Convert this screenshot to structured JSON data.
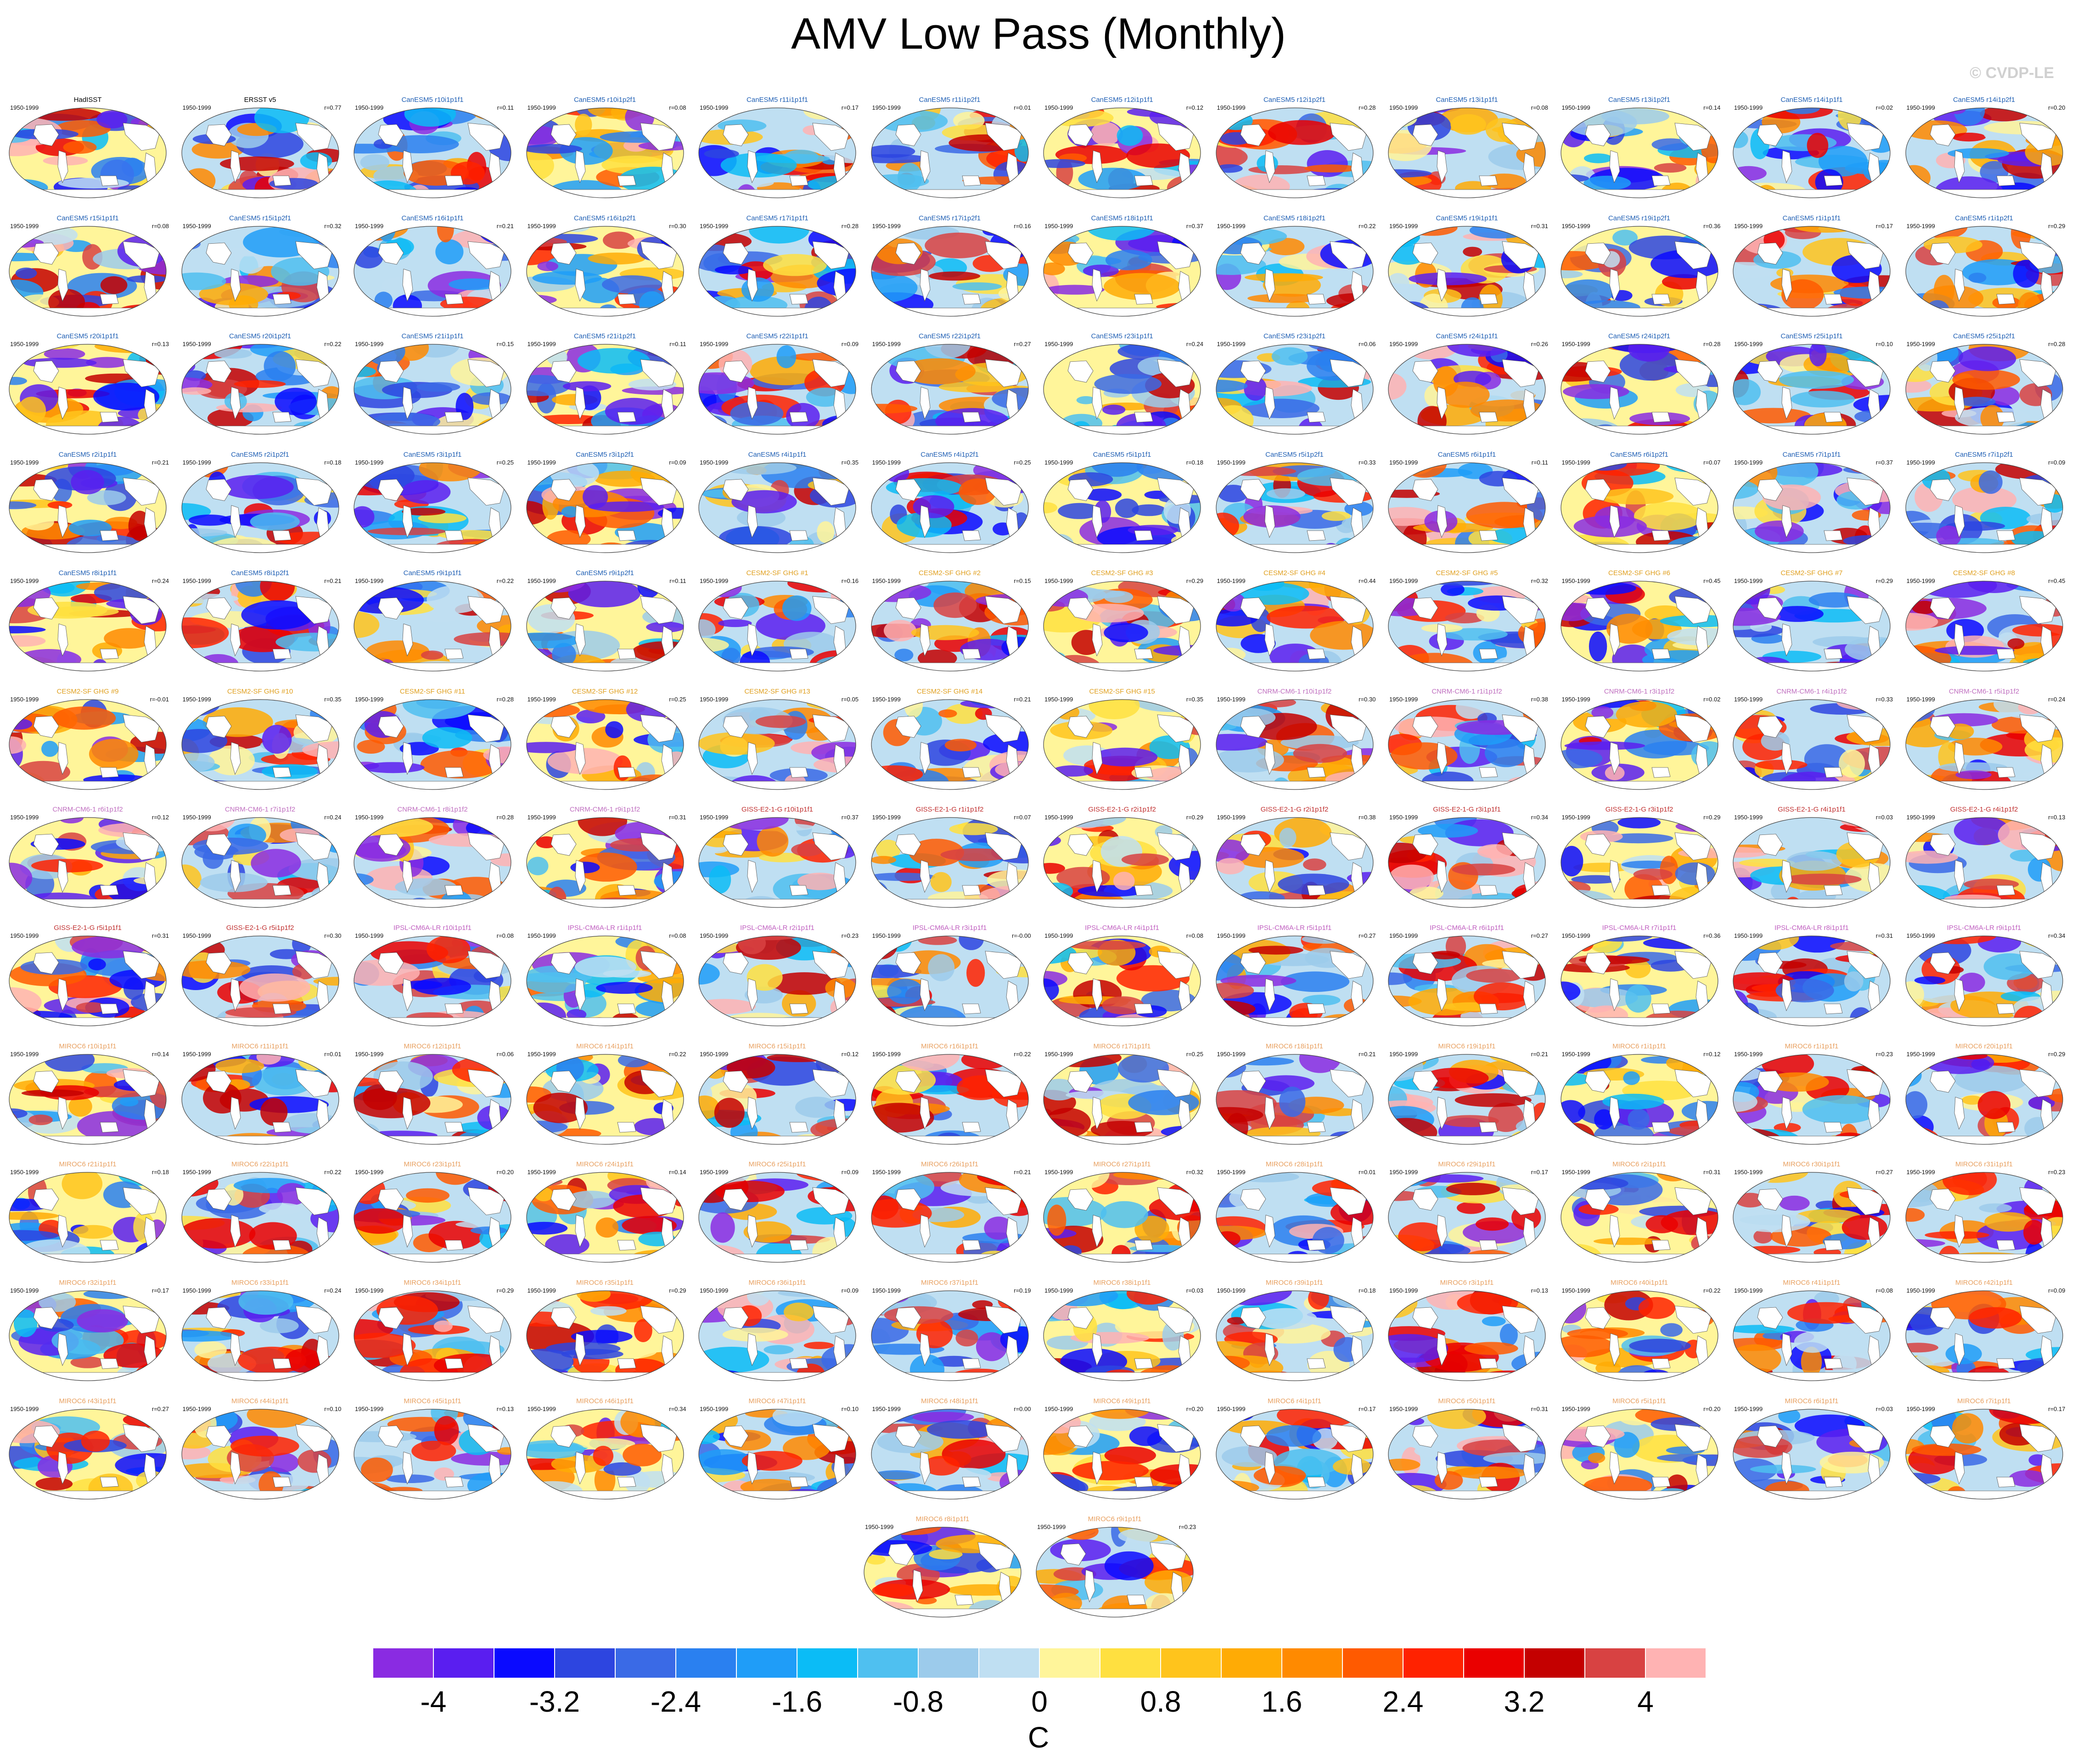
{
  "title": "AMV Low Pass (Monthly)",
  "watermark": "© CVDP-LE",
  "period": "1950-1999",
  "colorbar": {
    "units": "C",
    "ticks": [
      "-4",
      "-3.2",
      "-2.4",
      "-1.6",
      "-0.8",
      "0",
      "0.8",
      "1.6",
      "2.4",
      "3.2",
      "4"
    ],
    "levels_min": -4.4,
    "levels_step": 0.4,
    "colors": [
      "#8a2be2",
      "#5a1ef0",
      "#0a0aff",
      "#2d45e0",
      "#3a6ae6",
      "#2a80f0",
      "#1f9df8",
      "#0bbcf6",
      "#4fc0f0",
      "#9ccbeb",
      "#bfdff2",
      "#fff59a",
      "#ffe040",
      "#ffc41c",
      "#ffab05",
      "#ff8a00",
      "#ff5a00",
      "#ff2200",
      "#ea0000",
      "#c40000",
      "#d84242",
      "#ffb3b3"
    ]
  },
  "panels": [
    {
      "name": "HadISST",
      "r": "",
      "color": "#000000"
    },
    {
      "name": "ERSST v5",
      "r": "r=0.77",
      "color": "#000000"
    },
    {
      "name": "CanESM5 r10i1p1f1",
      "r": "r=0.11",
      "color": "#1f5fb4"
    },
    {
      "name": "CanESM5 r10i1p2f1",
      "r": "r=0.08",
      "color": "#1f5fb4"
    },
    {
      "name": "CanESM5 r11i1p1f1",
      "r": "r=0.17",
      "color": "#1f5fb4"
    },
    {
      "name": "CanESM5 r11i1p2f1",
      "r": "r=0.01",
      "color": "#1f5fb4"
    },
    {
      "name": "CanESM5 r12i1p1f1",
      "r": "r=0.12",
      "color": "#1f5fb4"
    },
    {
      "name": "CanESM5 r12i1p2f1",
      "r": "r=0.28",
      "color": "#1f5fb4"
    },
    {
      "name": "CanESM5 r13i1p1f1",
      "r": "r=0.08",
      "color": "#1f5fb4"
    },
    {
      "name": "CanESM5 r13i1p2f1",
      "r": "r=0.14",
      "color": "#1f5fb4"
    },
    {
      "name": "CanESM5 r14i1p1f1",
      "r": "r=0.02",
      "color": "#1f5fb4"
    },
    {
      "name": "CanESM5 r14i1p2f1",
      "r": "r=0.20",
      "color": "#1f5fb4"
    },
    {
      "name": "CanESM5 r15i1p1f1",
      "r": "r=0.08",
      "color": "#1f5fb4"
    },
    {
      "name": "CanESM5 r15i1p2f1",
      "r": "r=0.32",
      "color": "#1f5fb4"
    },
    {
      "name": "CanESM5 r16i1p1f1",
      "r": "r=0.21",
      "color": "#1f5fb4"
    },
    {
      "name": "CanESM5 r16i1p2f1",
      "r": "r=0.30",
      "color": "#1f5fb4"
    },
    {
      "name": "CanESM5 r17i1p1f1",
      "r": "r=0.28",
      "color": "#1f5fb4"
    },
    {
      "name": "CanESM5 r17i1p2f1",
      "r": "r=0.16",
      "color": "#1f5fb4"
    },
    {
      "name": "CanESM5 r18i1p1f1",
      "r": "r=0.37",
      "color": "#1f5fb4"
    },
    {
      "name": "CanESM5 r18i1p2f1",
      "r": "r=0.22",
      "color": "#1f5fb4"
    },
    {
      "name": "CanESM5 r19i1p1f1",
      "r": "r=0.31",
      "color": "#1f5fb4"
    },
    {
      "name": "CanESM5 r19i1p2f1",
      "r": "r=0.36",
      "color": "#1f5fb4"
    },
    {
      "name": "CanESM5 r1i1p1f1",
      "r": "r=0.17",
      "color": "#1f5fb4"
    },
    {
      "name": "CanESM5 r1i1p2f1",
      "r": "r=0.29",
      "color": "#1f5fb4"
    },
    {
      "name": "CanESM5 r20i1p1f1",
      "r": "r=0.13",
      "color": "#1f5fb4"
    },
    {
      "name": "CanESM5 r20i1p2f1",
      "r": "r=0.22",
      "color": "#1f5fb4"
    },
    {
      "name": "CanESM5 r21i1p1f1",
      "r": "r=0.15",
      "color": "#1f5fb4"
    },
    {
      "name": "CanESM5 r21i1p2f1",
      "r": "r=0.11",
      "color": "#1f5fb4"
    },
    {
      "name": "CanESM5 r22i1p1f1",
      "r": "r=0.09",
      "color": "#1f5fb4"
    },
    {
      "name": "CanESM5 r22i1p2f1",
      "r": "r=0.27",
      "color": "#1f5fb4"
    },
    {
      "name": "CanESM5 r23i1p1f1",
      "r": "r=0.24",
      "color": "#1f5fb4"
    },
    {
      "name": "CanESM5 r23i1p2f1",
      "r": "r=0.06",
      "color": "#1f5fb4"
    },
    {
      "name": "CanESM5 r24i1p1f1",
      "r": "r=0.26",
      "color": "#1f5fb4"
    },
    {
      "name": "CanESM5 r24i1p2f1",
      "r": "r=0.28",
      "color": "#1f5fb4"
    },
    {
      "name": "CanESM5 r25i1p1f1",
      "r": "r=0.10",
      "color": "#1f5fb4"
    },
    {
      "name": "CanESM5 r25i1p2f1",
      "r": "r=0.28",
      "color": "#1f5fb4"
    },
    {
      "name": "CanESM5 r2i1p1f1",
      "r": "r=0.21",
      "color": "#1f5fb4"
    },
    {
      "name": "CanESM5 r2i1p2f1",
      "r": "r=0.18",
      "color": "#1f5fb4"
    },
    {
      "name": "CanESM5 r3i1p1f1",
      "r": "r=0.25",
      "color": "#1f5fb4"
    },
    {
      "name": "CanESM5 r3i1p2f1",
      "r": "r=0.09",
      "color": "#1f5fb4"
    },
    {
      "name": "CanESM5 r4i1p1f1",
      "r": "r=0.35",
      "color": "#1f5fb4"
    },
    {
      "name": "CanESM5 r4i1p2f1",
      "r": "r=0.25",
      "color": "#1f5fb4"
    },
    {
      "name": "CanESM5 r5i1p1f1",
      "r": "r=0.18",
      "color": "#1f5fb4"
    },
    {
      "name": "CanESM5 r5i1p2f1",
      "r": "r=0.33",
      "color": "#1f5fb4"
    },
    {
      "name": "CanESM5 r6i1p1f1",
      "r": "r=0.11",
      "color": "#1f5fb4"
    },
    {
      "name": "CanESM5 r6i1p2f1",
      "r": "r=0.07",
      "color": "#1f5fb4"
    },
    {
      "name": "CanESM5 r7i1p1f1",
      "r": "r=0.37",
      "color": "#1f5fb4"
    },
    {
      "name": "CanESM5 r7i1p2f1",
      "r": "r=0.09",
      "color": "#1f5fb4"
    },
    {
      "name": "CanESM5 r8i1p1f1",
      "r": "r=0.24",
      "color": "#1f5fb4"
    },
    {
      "name": "CanESM5 r8i1p2f1",
      "r": "r=0.21",
      "color": "#1f5fb4"
    },
    {
      "name": "CanESM5 r9i1p1f1",
      "r": "r=0.22",
      "color": "#1f5fb4"
    },
    {
      "name": "CanESM5 r9i1p2f1",
      "r": "r=0.11",
      "color": "#1f5fb4"
    },
    {
      "name": "CESM2-SF GHG #1",
      "r": "r=0.16",
      "color": "#e0a020"
    },
    {
      "name": "CESM2-SF GHG #2",
      "r": "r=0.15",
      "color": "#e0a020"
    },
    {
      "name": "CESM2-SF GHG #3",
      "r": "r=0.29",
      "color": "#e0a020"
    },
    {
      "name": "CESM2-SF GHG #4",
      "r": "r=0.44",
      "color": "#e0a020"
    },
    {
      "name": "CESM2-SF GHG #5",
      "r": "r=0.32",
      "color": "#e0a020"
    },
    {
      "name": "CESM2-SF GHG #6",
      "r": "r=0.45",
      "color": "#e0a020"
    },
    {
      "name": "CESM2-SF GHG #7",
      "r": "r=0.29",
      "color": "#e0a020"
    },
    {
      "name": "CESM2-SF GHG #8",
      "r": "r=0.45",
      "color": "#e0a020"
    },
    {
      "name": "CESM2-SF GHG #9",
      "r": "r=-0.01",
      "color": "#e0a020"
    },
    {
      "name": "CESM2-SF GHG #10",
      "r": "r=0.35",
      "color": "#e0a020"
    },
    {
      "name": "CESM2-SF GHG #11",
      "r": "r=0.28",
      "color": "#e0a020"
    },
    {
      "name": "CESM2-SF GHG #12",
      "r": "r=0.25",
      "color": "#e0a020"
    },
    {
      "name": "CESM2-SF GHG #13",
      "r": "r=0.05",
      "color": "#e0a020"
    },
    {
      "name": "CESM2-SF GHG #14",
      "r": "r=0.21",
      "color": "#e0a020"
    },
    {
      "name": "CESM2-SF GHG #15",
      "r": "r=0.35",
      "color": "#e0a020"
    },
    {
      "name": "CNRM-CM6-1 r10i1p1f2",
      "r": "r=0.30",
      "color": "#c070c0"
    },
    {
      "name": "CNRM-CM6-1 r1i1p1f2",
      "r": "r=0.38",
      "color": "#c070c0"
    },
    {
      "name": "CNRM-CM6-1 r3i1p1f2",
      "r": "r=0.02",
      "color": "#c070c0"
    },
    {
      "name": "CNRM-CM6-1 r4i1p1f2",
      "r": "r=0.33",
      "color": "#c070c0"
    },
    {
      "name": "CNRM-CM6-1 r5i1p1f2",
      "r": "r=0.24",
      "color": "#c070c0"
    },
    {
      "name": "CNRM-CM6-1 r6i1p1f2",
      "r": "r=0.12",
      "color": "#c070c0"
    },
    {
      "name": "CNRM-CM6-1 r7i1p1f2",
      "r": "r=0.24",
      "color": "#c070c0"
    },
    {
      "name": "CNRM-CM6-1 r8i1p1f2",
      "r": "r=0.28",
      "color": "#c070c0"
    },
    {
      "name": "CNRM-CM6-1 r9i1p1f2",
      "r": "r=0.31",
      "color": "#c070c0"
    },
    {
      "name": "GISS-E2-1-G r10i1p1f1",
      "r": "r=0.37",
      "color": "#c03030"
    },
    {
      "name": "GISS-E2-1-G r1i1p1f2",
      "r": "r=0.07",
      "color": "#c03030"
    },
    {
      "name": "GISS-E2-1-G r2i1p1f2",
      "r": "r=0.29",
      "color": "#c03030"
    },
    {
      "name": "GISS-E2-1-G r2i1p1f2",
      "r": "r=0.38",
      "color": "#c03030"
    },
    {
      "name": "GISS-E2-1-G r3i1p1f1",
      "r": "r=0.34",
      "color": "#c03030"
    },
    {
      "name": "GISS-E2-1-G r3i1p1f2",
      "r": "r=0.29",
      "color": "#c03030"
    },
    {
      "name": "GISS-E2-1-G r4i1p1f1",
      "r": "r=0.03",
      "color": "#c03030"
    },
    {
      "name": "GISS-E2-1-G r4i1p1f2",
      "r": "r=0.13",
      "color": "#c03030"
    },
    {
      "name": "GISS-E2-1-G r5i1p1f1",
      "r": "r=0.31",
      "color": "#c03030"
    },
    {
      "name": "GISS-E2-1-G r5i1p1f2",
      "r": "r=0.30",
      "color": "#c03030"
    },
    {
      "name": "IPSL-CM6A-LR r10i1p1f1",
      "r": "r=0.08",
      "color": "#c060c0"
    },
    {
      "name": "IPSL-CM6A-LR r1i1p1f1",
      "r": "r=0.08",
      "color": "#c060c0"
    },
    {
      "name": "IPSL-CM6A-LR r2i1p1f1",
      "r": "r=0.23",
      "color": "#c060c0"
    },
    {
      "name": "IPSL-CM6A-LR r3i1p1f1",
      "r": "r=-0.00",
      "color": "#c060c0"
    },
    {
      "name": "IPSL-CM6A-LR r4i1p1f1",
      "r": "r=0.08",
      "color": "#c060c0"
    },
    {
      "name": "IPSL-CM6A-LR r5i1p1f1",
      "r": "r=0.27",
      "color": "#c060c0"
    },
    {
      "name": "IPSL-CM6A-LR r6i1p1f1",
      "r": "r=0.27",
      "color": "#c060c0"
    },
    {
      "name": "IPSL-CM6A-LR r7i1p1f1",
      "r": "r=0.36",
      "color": "#c060c0"
    },
    {
      "name": "IPSL-CM6A-LR r8i1p1f1",
      "r": "r=0.31",
      "color": "#c060c0"
    },
    {
      "name": "IPSL-CM6A-LR r9i1p1f1",
      "r": "r=0.34",
      "color": "#c060c0"
    },
    {
      "name": "MIROC6 r10i1p1f1",
      "r": "r=0.14",
      "color": "#e8a060"
    },
    {
      "name": "MIROC6 r11i1p1f1",
      "r": "r=0.01",
      "color": "#e8a060"
    },
    {
      "name": "MIROC6 r12i1p1f1",
      "r": "r=0.06",
      "color": "#e8a060"
    },
    {
      "name": "MIROC6 r14i1p1f1",
      "r": "r=0.22",
      "color": "#e8a060"
    },
    {
      "name": "MIROC6 r15i1p1f1",
      "r": "r=0.12",
      "color": "#e8a060"
    },
    {
      "name": "MIROC6 r16i1p1f1",
      "r": "r=0.22",
      "color": "#e8a060"
    },
    {
      "name": "MIROC6 r17i1p1f1",
      "r": "r=0.25",
      "color": "#e8a060"
    },
    {
      "name": "MIROC6 r18i1p1f1",
      "r": "r=0.21",
      "color": "#e8a060"
    },
    {
      "name": "MIROC6 r19i1p1f1",
      "r": "r=0.21",
      "color": "#e8a060"
    },
    {
      "name": "MIROC6 r1i1p1f1",
      "r": "r=0.12",
      "color": "#e8a060"
    },
    {
      "name": "MIROC6 r1i1p1f1",
      "r": "r=0.23",
      "color": "#e8a060"
    },
    {
      "name": "MIROC6 r20i1p1f1",
      "r": "r=0.29",
      "color": "#e8a060"
    },
    {
      "name": "MIROC6 r21i1p1f1",
      "r": "r=0.18",
      "color": "#e8a060"
    },
    {
      "name": "MIROC6 r22i1p1f1",
      "r": "r=0.22",
      "color": "#e8a060"
    },
    {
      "name": "MIROC6 r23i1p1f1",
      "r": "r=0.20",
      "color": "#e8a060"
    },
    {
      "name": "MIROC6 r24i1p1f1",
      "r": "r=0.14",
      "color": "#e8a060"
    },
    {
      "name": "MIROC6 r25i1p1f1",
      "r": "r=0.09",
      "color": "#e8a060"
    },
    {
      "name": "MIROC6 r26i1p1f1",
      "r": "r=0.21",
      "color": "#e8a060"
    },
    {
      "name": "MIROC6 r27i1p1f1",
      "r": "r=0.32",
      "color": "#e8a060"
    },
    {
      "name": "MIROC6 r28i1p1f1",
      "r": "r=0.01",
      "color": "#e8a060"
    },
    {
      "name": "MIROC6 r29i1p1f1",
      "r": "r=0.17",
      "color": "#e8a060"
    },
    {
      "name": "MIROC6 r2i1p1f1",
      "r": "r=0.31",
      "color": "#e8a060"
    },
    {
      "name": "MIROC6 r30i1p1f1",
      "r": "r=0.27",
      "color": "#e8a060"
    },
    {
      "name": "MIROC6 r31i1p1f1",
      "r": "r=0.23",
      "color": "#e8a060"
    },
    {
      "name": "MIROC6 r32i1p1f1",
      "r": "r=0.17",
      "color": "#e8a060"
    },
    {
      "name": "MIROC6 r33i1p1f1",
      "r": "r=0.24",
      "color": "#e8a060"
    },
    {
      "name": "MIROC6 r34i1p1f1",
      "r": "r=0.29",
      "color": "#e8a060"
    },
    {
      "name": "MIROC6 r35i1p1f1",
      "r": "r=0.29",
      "color": "#e8a060"
    },
    {
      "name": "MIROC6 r36i1p1f1",
      "r": "r=0.09",
      "color": "#e8a060"
    },
    {
      "name": "MIROC6 r37i1p1f1",
      "r": "r=0.19",
      "color": "#e8a060"
    },
    {
      "name": "MIROC6 r38i1p1f1",
      "r": "r=0.03",
      "color": "#e8a060"
    },
    {
      "name": "MIROC6 r39i1p1f1",
      "r": "r=0.18",
      "color": "#e8a060"
    },
    {
      "name": "MIROC6 r3i1p1f1",
      "r": "r=0.13",
      "color": "#e8a060"
    },
    {
      "name": "MIROC6 r40i1p1f1",
      "r": "r=0.22",
      "color": "#e8a060"
    },
    {
      "name": "MIROC6 r41i1p1f1",
      "r": "r=0.08",
      "color": "#e8a060"
    },
    {
      "name": "MIROC6 r42i1p1f1",
      "r": "r=0.09",
      "color": "#e8a060"
    },
    {
      "name": "MIROC6 r43i1p1f1",
      "r": "r=0.27",
      "color": "#e8a060"
    },
    {
      "name": "MIROC6 r44i1p1f1",
      "r": "r=0.10",
      "color": "#e8a060"
    },
    {
      "name": "MIROC6 r45i1p1f1",
      "r": "r=0.13",
      "color": "#e8a060"
    },
    {
      "name": "MIROC6 r46i1p1f1",
      "r": "r=0.34",
      "color": "#e8a060"
    },
    {
      "name": "MIROC6 r47i1p1f1",
      "r": "r=0.10",
      "color": "#e8a060"
    },
    {
      "name": "MIROC6 r48i1p1f1",
      "r": "r=0.00",
      "color": "#e8a060"
    },
    {
      "name": "MIROC6 r49i1p1f1",
      "r": "r=0.20",
      "color": "#e8a060"
    },
    {
      "name": "MIROC6 r4i1p1f1",
      "r": "r=0.17",
      "color": "#e8a060"
    },
    {
      "name": "MIROC6 r50i1p1f1",
      "r": "r=0.31",
      "color": "#e8a060"
    },
    {
      "name": "MIROC6 r5i1p1f1",
      "r": "r=0.20",
      "color": "#e8a060"
    },
    {
      "name": "MIROC6 r6i1p1f1",
      "r": "r=0.03",
      "color": "#e8a060"
    },
    {
      "name": "MIROC6 r7i1p1f1",
      "r": "r=0.17",
      "color": "#e8a060"
    },
    {
      "name": "MIROC6 r8i1p1f1",
      "r": "",
      "color": "#e8a060"
    },
    {
      "name": "MIROC6 r9i1p1f1",
      "r": "r=0.23",
      "color": "#e8a060"
    }
  ]
}
